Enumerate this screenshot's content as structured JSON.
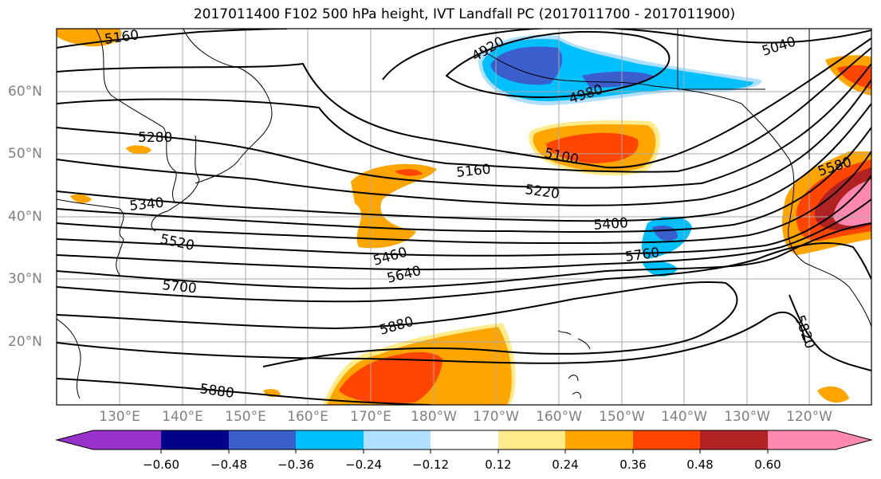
{
  "title": "2017011400 F102 500 hPa height, IVT Landfall PC (2017011700 - 2017011900)",
  "lon_labels": [
    "130°E",
    "140°E",
    "150°E",
    "160°E",
    "170°E",
    "180°W",
    "170°W",
    "160°W",
    "150°W",
    "140°W",
    "130°W",
    "120°W"
  ],
  "lat_labels": [
    "60°N",
    "50°N",
    "40°N",
    "30°N",
    "20°N"
  ],
  "contour_labels": [
    "5160",
    "4920",
    "5040",
    "4980",
    "5280",
    "5100",
    "5160",
    "5580",
    "5340",
    "5220",
    "5400",
    "5520",
    "5460",
    "5760",
    "5640",
    "5700",
    "5880",
    "5820",
    "5880"
  ],
  "colorbar": {
    "ticks": [
      "−0.60",
      "−0.48",
      "−0.36",
      "−0.24",
      "−0.12",
      "0.12",
      "0.24",
      "0.36",
      "0.48",
      "0.60"
    ],
    "colors": [
      "#9932cc",
      "#00008b",
      "#3a5fcd",
      "#00bfff",
      "#b0e0ff",
      "#ffffff",
      "#ffeb8a",
      "#ffa500",
      "#ff4500",
      "#b22222",
      "#ff88b0"
    ]
  }
}
